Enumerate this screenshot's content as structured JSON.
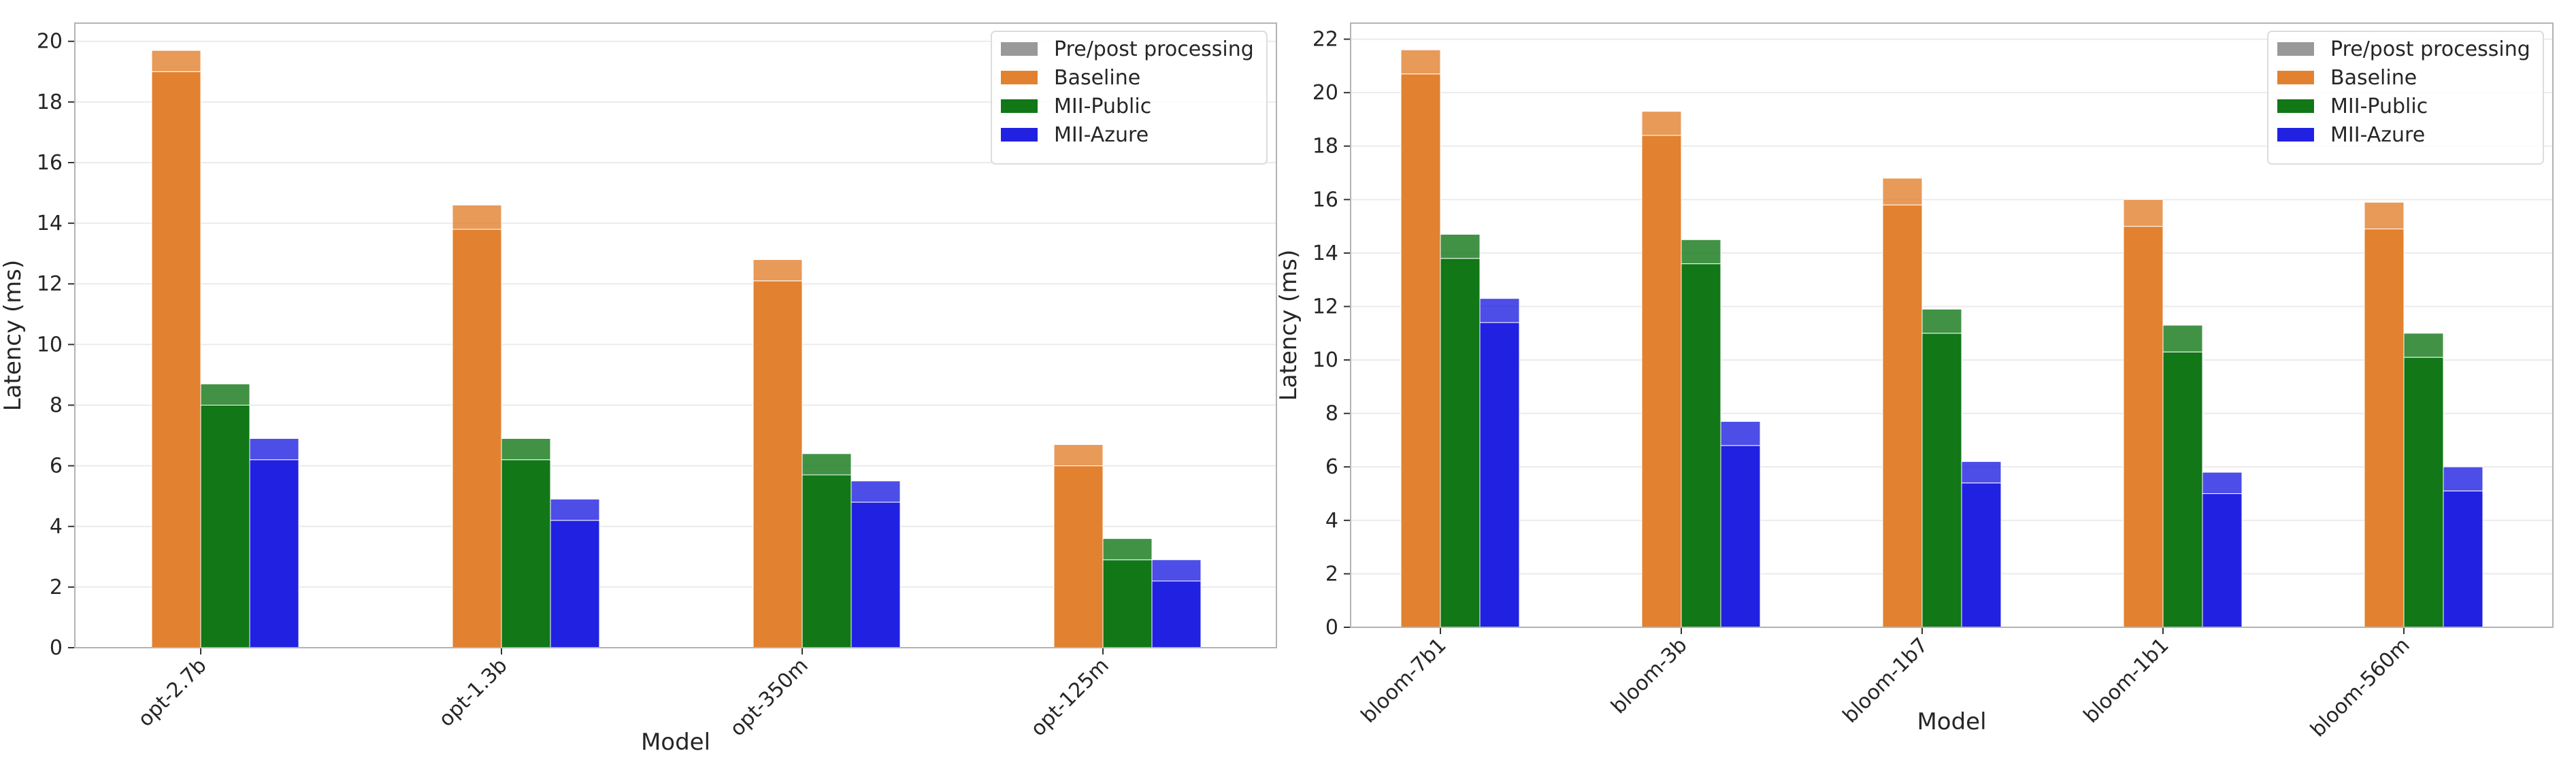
{
  "colors": {
    "prepost": "#999999",
    "baseline": "#e2812f",
    "mii_public": "#117717",
    "mii_azure": "#2121e2",
    "grid": "#ebebeb",
    "axes": "#b3b3b3"
  },
  "chart_data": [
    {
      "type": "bar",
      "stacked_overhead": true,
      "xlabel": "Model",
      "ylabel": "Latency (ms)",
      "categories": [
        "opt-2.7b",
        "opt-1.3b",
        "opt-350m",
        "opt-125m"
      ],
      "ylim": [
        0,
        20.6
      ],
      "yticks": [
        0,
        2,
        4,
        6,
        8,
        10,
        12,
        14,
        16,
        18,
        20
      ],
      "grid": true,
      "legend_position": "top-right",
      "legend": [
        "Pre/post processing",
        "Baseline",
        "MII-Public",
        "MII-Azure"
      ],
      "series": [
        {
          "name": "Baseline",
          "colorKey": "baseline",
          "values": [
            19.0,
            13.8,
            12.1,
            6.0
          ],
          "totals": [
            19.7,
            14.6,
            12.8,
            6.7
          ]
        },
        {
          "name": "MII-Public",
          "colorKey": "mii_public",
          "values": [
            8.0,
            6.2,
            5.7,
            2.9
          ],
          "totals": [
            8.7,
            6.9,
            6.4,
            3.6
          ]
        },
        {
          "name": "MII-Azure",
          "colorKey": "mii_azure",
          "values": [
            6.2,
            4.2,
            4.8,
            2.2
          ],
          "totals": [
            6.9,
            4.9,
            5.5,
            2.9
          ]
        }
      ]
    },
    {
      "type": "bar",
      "stacked_overhead": true,
      "xlabel": "Model",
      "ylabel": "Latency (ms)",
      "categories": [
        "bloom-7b1",
        "bloom-3b",
        "bloom-1b7",
        "bloom-1b1",
        "bloom-560m"
      ],
      "ylim": [
        0,
        22.6
      ],
      "yticks": [
        0,
        2,
        4,
        6,
        8,
        10,
        12,
        14,
        16,
        18,
        20,
        22
      ],
      "grid": true,
      "legend_position": "top-right",
      "legend": [
        "Pre/post processing",
        "Baseline",
        "MII-Public",
        "MII-Azure"
      ],
      "series": [
        {
          "name": "Baseline",
          "colorKey": "baseline",
          "values": [
            20.7,
            18.4,
            15.8,
            15.0,
            14.9
          ],
          "totals": [
            21.6,
            19.3,
            16.8,
            16.0,
            15.9
          ]
        },
        {
          "name": "MII-Public",
          "colorKey": "mii_public",
          "values": [
            13.8,
            13.6,
            11.0,
            10.3,
            10.1
          ],
          "totals": [
            14.7,
            14.5,
            11.9,
            11.3,
            11.0
          ]
        },
        {
          "name": "MII-Azure",
          "colorKey": "mii_azure",
          "values": [
            11.4,
            6.8,
            5.4,
            5.0,
            5.1
          ],
          "totals": [
            12.3,
            7.7,
            6.2,
            5.8,
            6.0
          ]
        }
      ]
    }
  ]
}
